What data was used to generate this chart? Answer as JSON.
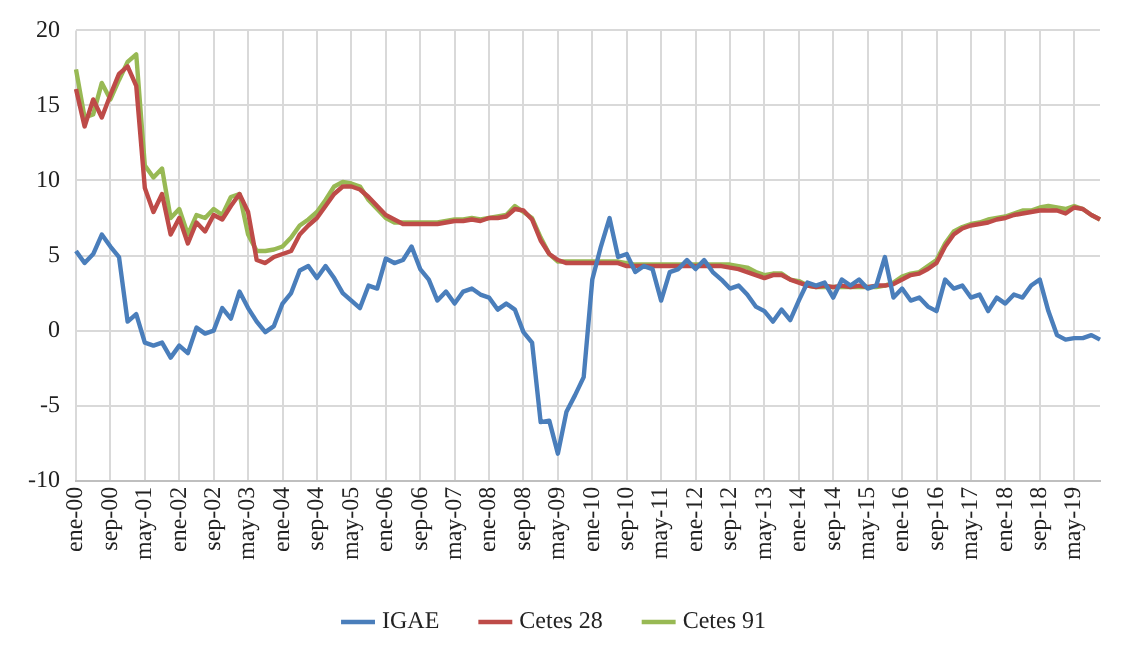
{
  "chart_data": {
    "type": "line",
    "categories": [
      "ene-00",
      null,
      null,
      null,
      "sep-00",
      null,
      null,
      null,
      "may-01",
      null,
      null,
      null,
      "ene-02",
      null,
      null,
      null,
      "sep-02",
      null,
      null,
      null,
      "may-03",
      null,
      null,
      null,
      "ene-04",
      null,
      null,
      null,
      "sep-04",
      null,
      null,
      null,
      "may-05",
      null,
      null,
      null,
      "ene-06",
      null,
      null,
      null,
      "sep-06",
      null,
      null,
      null,
      "may-07",
      null,
      null,
      null,
      "ene-08",
      null,
      null,
      null,
      "sep-08",
      null,
      null,
      null,
      "may-09",
      null,
      null,
      null,
      "ene-10",
      null,
      null,
      null,
      "sep-10",
      null,
      null,
      null,
      "may-11",
      null,
      null,
      null,
      "ene-12",
      null,
      null,
      null,
      "sep-12",
      null,
      null,
      null,
      "may-13",
      null,
      null,
      null,
      "ene-14",
      null,
      null,
      null,
      "sep-14",
      null,
      null,
      null,
      "may-15",
      null,
      null,
      null,
      "ene-16",
      null,
      null,
      null,
      "sep-16",
      null,
      null,
      null,
      "may-17",
      null,
      null,
      null,
      "ene-18",
      null,
      null,
      null,
      "sep-18",
      null,
      null,
      null,
      "may-19",
      null,
      null,
      null
    ],
    "series": [
      {
        "name": "IGAE",
        "color": "#4a7ebb",
        "values": [
          5.3,
          4.5,
          5.1,
          6.4,
          5.6,
          4.9,
          0.6,
          1.1,
          -0.8,
          -1.0,
          -0.8,
          -1.8,
          -1.0,
          -1.5,
          0.2,
          -0.2,
          0.0,
          1.5,
          0.8,
          2.6,
          1.5,
          0.6,
          -0.1,
          0.3,
          1.8,
          2.5,
          4.0,
          4.3,
          3.5,
          4.3,
          3.5,
          2.5,
          2.0,
          1.5,
          3.0,
          2.8,
          4.8,
          4.5,
          4.7,
          5.6,
          4.1,
          3.4,
          2.0,
          2.6,
          1.8,
          2.6,
          2.8,
          2.4,
          2.2,
          1.4,
          1.8,
          1.4,
          -0.1,
          -0.8,
          -6.1,
          -6.0,
          -8.2,
          -5.4,
          -4.3,
          -3.1,
          3.4,
          5.6,
          7.5,
          4.9,
          5.1,
          3.9,
          4.3,
          4.1,
          2.0,
          3.9,
          4.1,
          4.7,
          4.1,
          4.7,
          3.9,
          3.4,
          2.8,
          3.0,
          2.4,
          1.6,
          1.3,
          0.6,
          1.4,
          0.7,
          2.0,
          3.2,
          3.0,
          3.2,
          2.2,
          3.4,
          3.0,
          3.4,
          2.8,
          3.0,
          4.9,
          2.2,
          2.8,
          2.0,
          2.2,
          1.6,
          1.3,
          3.4,
          2.8,
          3.0,
          2.2,
          2.4,
          1.3,
          2.2,
          1.8,
          2.4,
          2.2,
          3.0,
          3.4,
          1.3,
          -0.3,
          -0.6,
          -0.5,
          -0.5,
          -0.3,
          -0.6
        ]
      },
      {
        "name": "Cetes 28",
        "color": "#be4b48",
        "values": [
          16.1,
          13.6,
          15.4,
          14.2,
          15.7,
          17.1,
          17.6,
          16.3,
          9.5,
          7.9,
          9.1,
          6.4,
          7.5,
          5.8,
          7.2,
          6.6,
          7.7,
          7.4,
          8.3,
          9.1,
          7.9,
          4.7,
          4.5,
          4.9,
          5.1,
          5.3,
          6.4,
          7.0,
          7.5,
          8.3,
          9.1,
          9.6,
          9.6,
          9.4,
          8.9,
          8.3,
          7.7,
          7.4,
          7.1,
          7.1,
          7.1,
          7.1,
          7.1,
          7.2,
          7.3,
          7.3,
          7.4,
          7.3,
          7.5,
          7.5,
          7.6,
          8.1,
          8.0,
          7.4,
          6.0,
          5.1,
          4.7,
          4.5,
          4.5,
          4.5,
          4.5,
          4.5,
          4.5,
          4.5,
          4.3,
          4.3,
          4.3,
          4.3,
          4.3,
          4.3,
          4.3,
          4.3,
          4.3,
          4.3,
          4.3,
          4.3,
          4.2,
          4.1,
          3.9,
          3.7,
          3.5,
          3.7,
          3.7,
          3.4,
          3.2,
          3.0,
          2.9,
          3.0,
          2.9,
          3.0,
          2.9,
          3.0,
          2.9,
          3.0,
          3.0,
          3.1,
          3.4,
          3.7,
          3.8,
          4.1,
          4.5,
          5.6,
          6.4,
          6.8,
          7.0,
          7.1,
          7.2,
          7.4,
          7.5,
          7.7,
          7.8,
          7.9,
          8.0,
          8.0,
          8.0,
          7.8,
          8.2,
          8.1,
          7.7,
          7.4
        ]
      },
      {
        "name": "Cetes 91",
        "color": "#98b954",
        "values": [
          17.4,
          14.2,
          14.4,
          16.5,
          15.4,
          16.7,
          17.9,
          18.4,
          11.0,
          10.2,
          10.8,
          7.5,
          8.1,
          6.4,
          7.7,
          7.5,
          8.1,
          7.7,
          8.9,
          9.1,
          6.4,
          5.3,
          5.3,
          5.4,
          5.6,
          6.2,
          7.0,
          7.4,
          7.9,
          8.7,
          9.6,
          9.9,
          9.8,
          9.6,
          8.7,
          8.1,
          7.5,
          7.2,
          7.2,
          7.2,
          7.2,
          7.2,
          7.2,
          7.3,
          7.4,
          7.4,
          7.5,
          7.4,
          7.5,
          7.6,
          7.7,
          8.3,
          7.9,
          7.5,
          6.2,
          5.1,
          4.6,
          4.6,
          4.6,
          4.6,
          4.6,
          4.6,
          4.6,
          4.6,
          4.5,
          4.4,
          4.4,
          4.4,
          4.4,
          4.4,
          4.4,
          4.4,
          4.4,
          4.4,
          4.4,
          4.4,
          4.4,
          4.3,
          4.2,
          3.9,
          3.7,
          3.8,
          3.8,
          3.4,
          3.3,
          3.0,
          2.9,
          2.9,
          2.9,
          2.9,
          2.9,
          2.9,
          2.9,
          2.9,
          3.0,
          3.2,
          3.6,
          3.8,
          3.9,
          4.3,
          4.7,
          5.8,
          6.6,
          6.9,
          7.1,
          7.2,
          7.4,
          7.5,
          7.6,
          7.8,
          8.0,
          8.0,
          8.2,
          8.3,
          8.2,
          8.1,
          8.3,
          8.1,
          7.7,
          7.4
        ]
      }
    ],
    "ylim": [
      -10,
      20
    ],
    "yticks": [
      -10,
      -5,
      0,
      5,
      10,
      15,
      20
    ],
    "grid": true,
    "legend": "bottom",
    "marker": "none",
    "line_style": "solid"
  }
}
